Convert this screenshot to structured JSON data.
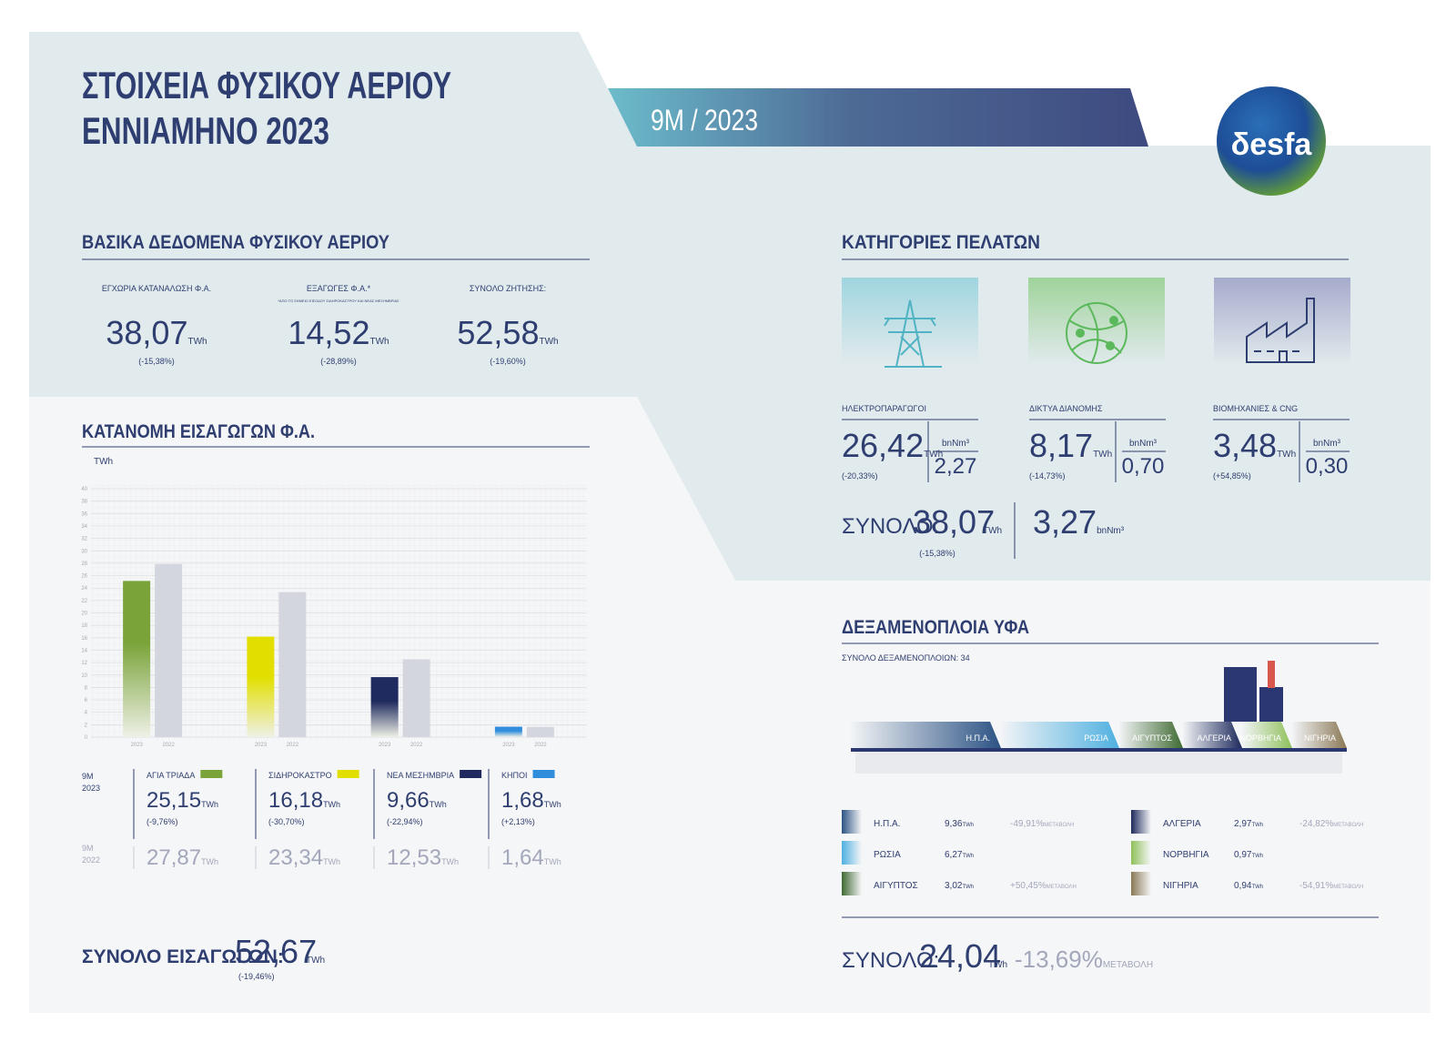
{
  "header": {
    "title_line1": "ΣΤΟΙΧΕΙΑ ΦΥΣΙΚΟΥ ΑΕΡΙΟΥ",
    "title_line2": "ΕΝΝΙΑΜΗΝΟ 2023",
    "period": "9M / 2023",
    "logo": "δesfa"
  },
  "units": {
    "energy": "TWh",
    "volume": "bnNm³",
    "change_word": "ΜΕΤΑΒΟΛΗ"
  },
  "key_data": {
    "title": "ΒΑΣΙΚΑ ΔΕΔΟΜΕΝΑ ΦΥΣΙΚΟΥ ΑΕΡΙΟΥ",
    "items": [
      {
        "label": "ΕΓΧΩΡΙΑ ΚΑΤΑΝΑΛΩΣΗ Φ.Α.",
        "value": "38,07",
        "change": "(-15,38%)"
      },
      {
        "label": "ΕΞΑΓΩΓΕΣ Φ.Α.*",
        "note": "*ΑΠΟ ΤΟ ΣΗΜΕΙΟ ΕΙΣΟΔΟΥ ΣΙΔΗΡΟΚΑΣΤΡΟΥ ΚΑΙ ΝΕΑΣ ΜΕΣΗΜΒΡΙΑΣ",
        "value": "14,52",
        "change": "(-28,89%)"
      },
      {
        "label": "ΣΥΝΟΛΟ ΖΗΤΗΣΗΣ:",
        "value": "52,58",
        "change": "(-19,60%)"
      }
    ]
  },
  "customers": {
    "title": "ΚΑΤΗΓΟΡΙΕΣ ΠΕΛΑΤΩΝ",
    "items": [
      {
        "label": "ΗΛΕΚΤΡΟΠΑΡΑΓΩΓΟΙ",
        "value": "26,42",
        "change": "(-20,33%)",
        "volume": "2,27"
      },
      {
        "label": "ΔΙΚΤΥΑ ΔΙΑΝΟΜΗΣ",
        "value": "8,17",
        "change": "(-14,73%)",
        "volume": "0,70"
      },
      {
        "label": "ΒΙΟΜΗΧΑΝΙΕΣ & CNG",
        "value": "3,48",
        "change": "(+54,85%)",
        "volume": "0,30"
      }
    ],
    "total_label": "ΣΥΝΟΛΟ:",
    "total_value": "38,07",
    "total_change": "(-15,38%)",
    "total_volume": "3,27"
  },
  "imports": {
    "title": "ΚΑΤΑΝΟΜΗ ΕΙΣΑΓΩΓΩΝ Φ.Α.",
    "period_prefix": "9M",
    "changes": [
      "(-9,76%)",
      "(-30,70%)",
      "(-22,94%)",
      "(+2,13%)"
    ],
    "total_label": "ΣΥΝΟΛΟ ΕΙΣΑΓΩΓΩΝ:",
    "total_value": "52,67",
    "total_change": "(-19,46%)"
  },
  "chart_data": {
    "type": "bar",
    "y_label": "TWh",
    "categories": [
      "ΑΓΙΑ ΤΡΙΑΔΑ",
      "ΣΙΔΗΡΟΚΑΣΤΡΟ",
      "ΝΕΑ ΜΕΣΗΜΒΡΙΑ",
      "ΚΗΠΟΙ"
    ],
    "series": [
      {
        "name": "2023",
        "colors": [
          "#7aa43a",
          "#e2df00",
          "#1f2a5e",
          "#2f8ddc"
        ],
        "values": [
          25.15,
          16.18,
          9.66,
          1.68
        ],
        "value_labels": [
          "25,15",
          "16,18",
          "9,66",
          "1,68"
        ]
      },
      {
        "name": "2022",
        "color": "#d4d6df",
        "values": [
          27.87,
          23.34,
          12.53,
          1.64
        ],
        "value_labels": [
          "27,87",
          "23,34",
          "12,53",
          "1,64"
        ]
      }
    ],
    "ylim": [
      0,
      40
    ],
    "yticks": [
      0,
      2,
      4,
      6,
      8,
      10,
      12,
      14,
      16,
      18,
      20,
      22,
      24,
      26,
      28,
      30,
      32,
      34,
      36,
      38,
      40
    ],
    "grid": true
  },
  "lng": {
    "title": "ΔΕΞΑΜΕΝΟΠΛΟΙΑ ΥΦΑ",
    "subtitle": "ΣΥΝΟΛΟ ΔΕΞΑΜΕΝΟΠΛΟΙΩΝ: 34",
    "countries": [
      {
        "name": "Η.Π.Α.",
        "value": "9,36",
        "change": "-49,91%",
        "color": "#2c5384"
      },
      {
        "name": "ΡΩΣΙΑ",
        "value": "6,27",
        "color": "#4fb0e0"
      },
      {
        "name": "ΑΙΓΥΠΤΟΣ",
        "value": "3,02",
        "change": "+50,45%",
        "color": "#3f6a32"
      },
      {
        "name": "ΑΛΓΕΡΙΑ",
        "value": "2,97",
        "change": "-24,82%",
        "color": "#1e2a5c"
      },
      {
        "name": "ΝΟΡΒΗΓΙΑ",
        "value": "0,97",
        "color": "#8fc05a"
      },
      {
        "name": "ΝΙΓΗΡΙΑ",
        "value": "0,94",
        "change": "-54,91%",
        "color": "#8a7855"
      }
    ],
    "total_label": "ΣΥΝΟΛΟ:",
    "total_value": "24,04",
    "total_change": "-13,69%"
  }
}
